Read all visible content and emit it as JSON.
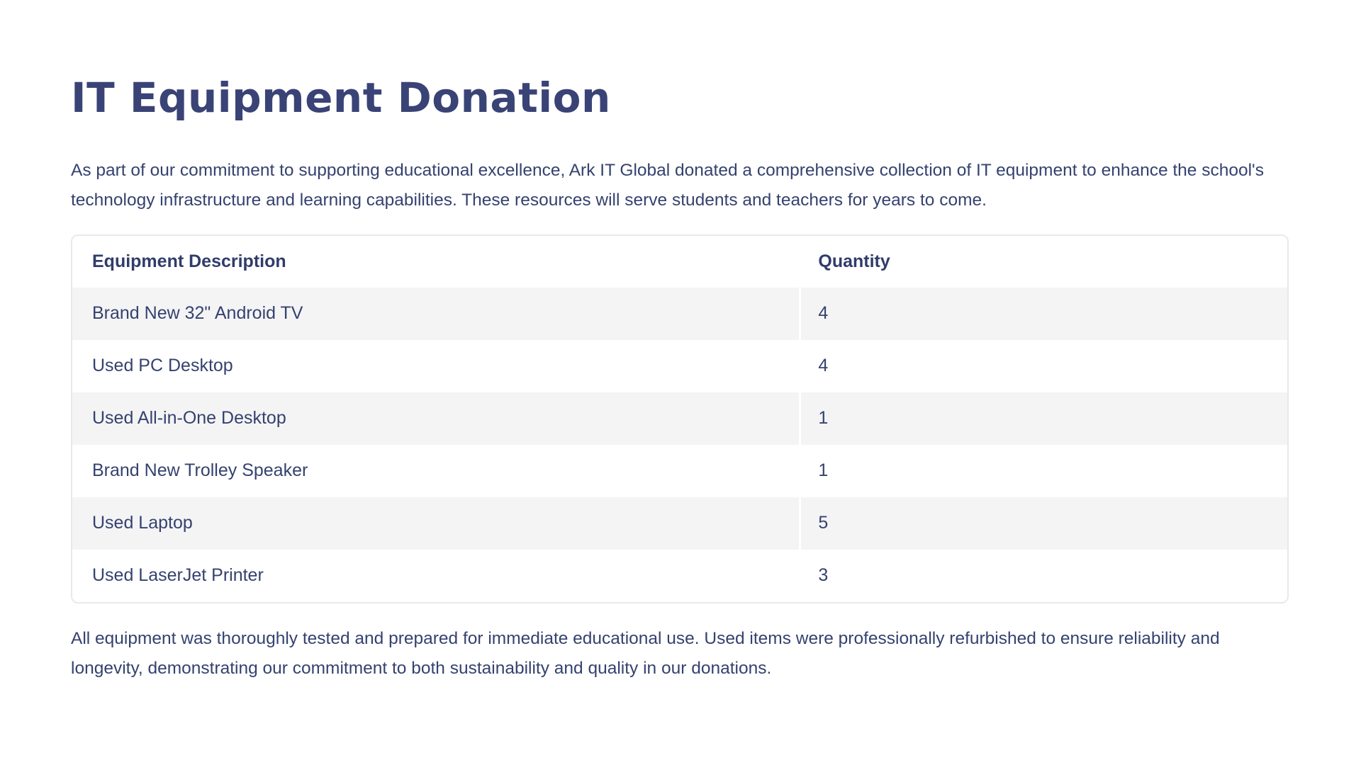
{
  "page": {
    "title": "IT Equipment Donation",
    "intro": "As part of our commitment to supporting educational excellence, Ark IT Global donated a comprehensive collection of IT equipment to enhance the school's technology infrastructure and learning capabilities. These resources will serve students and teachers for years to come.",
    "outro": "All equipment was thoroughly tested and prepared for immediate educational use. Used items were professionally refurbished to ensure reliability and longevity, demonstrating our commitment to both sustainability and quality in our donations."
  },
  "table": {
    "headers": {
      "description": "Equipment Description",
      "quantity": "Quantity"
    },
    "rows": [
      {
        "description": "Brand New 32\" Android TV",
        "quantity": "4"
      },
      {
        "description": "Used PC Desktop",
        "quantity": "4"
      },
      {
        "description": "Used All-in-One Desktop",
        "quantity": "1"
      },
      {
        "description": "Brand New Trolley Speaker",
        "quantity": "1"
      },
      {
        "description": "Used Laptop",
        "quantity": "5"
      },
      {
        "description": "Used LaserJet Printer",
        "quantity": "3"
      }
    ]
  },
  "colors": {
    "heading": "#3a4376",
    "body_text": "#35426f",
    "alt_row_bg": "#f4f4f5",
    "table_border": "#e9e9eb"
  }
}
